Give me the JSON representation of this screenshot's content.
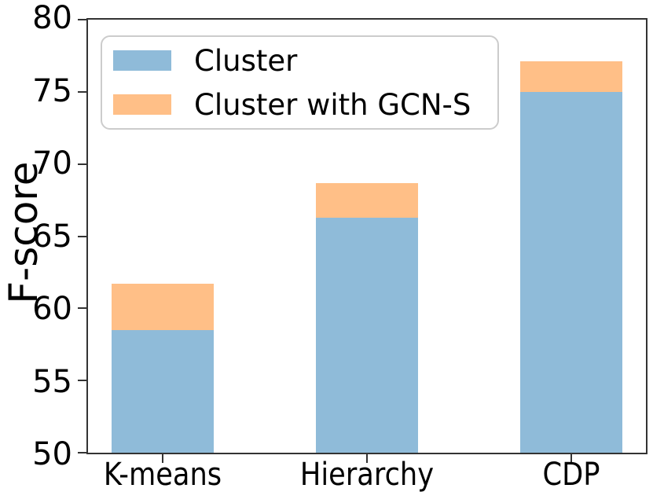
{
  "chart_data": {
    "type": "bar",
    "variant": "overlay",
    "title": "",
    "xlabel": "",
    "ylabel": "F-score",
    "categories": [
      "K-means",
      "Hierarchy",
      "CDP"
    ],
    "series": [
      {
        "name": "Cluster",
        "color": "#8fbbd9",
        "values": [
          58.5,
          66.3,
          75.0
        ]
      },
      {
        "name": "Cluster with GCN-S",
        "color": "#ffbf87",
        "values": [
          61.7,
          68.7,
          77.1
        ]
      }
    ],
    "ylim": [
      50,
      80
    ],
    "yticks": [
      50,
      55,
      60,
      65,
      70,
      75,
      80
    ],
    "grid": false,
    "legend": {
      "position": "upper left"
    },
    "colors": {
      "axis": "#333333",
      "legend_border": "#cccccc",
      "background": "#ffffff",
      "text": "#000000"
    }
  }
}
